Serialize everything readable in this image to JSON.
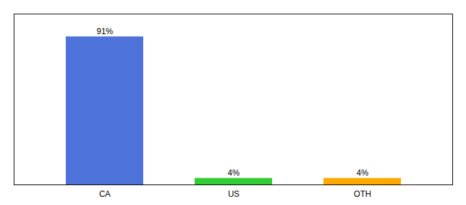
{
  "chart_data": {
    "type": "bar",
    "categories": [
      "CA",
      "US",
      "OTH"
    ],
    "values": [
      91,
      4,
      4
    ],
    "colors": [
      "#4d72d9",
      "#33cc33",
      "#ffaa00"
    ],
    "ylim": [
      0,
      105
    ],
    "data_labels": true,
    "value_labels": [
      "91%",
      "4%",
      "4%"
    ],
    "tick_labels": "x",
    "grid": false
  }
}
